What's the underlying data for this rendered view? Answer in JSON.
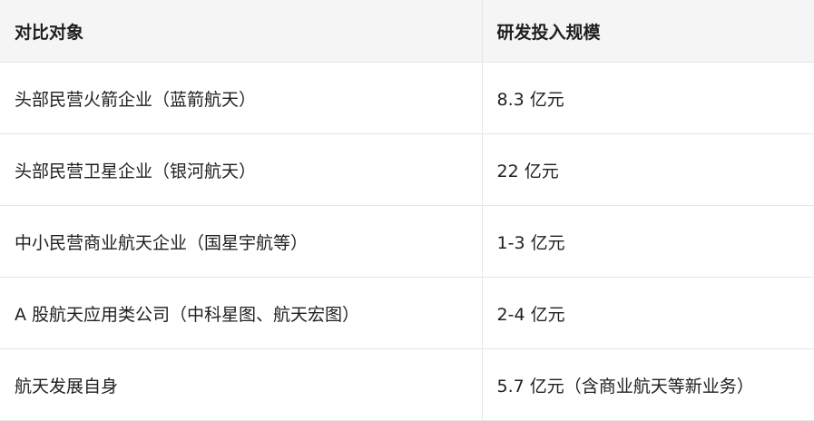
{
  "table": {
    "header": [
      "对比对象",
      "研发投入规模"
    ],
    "rows": [
      [
        "头部民营火箭企业（蓝箭航天）",
        "8.3 亿元"
      ],
      [
        "头部民营卫星企业（银河航天）",
        "22 亿元"
      ],
      [
        "中小民营商业航天企业（国星宇航等）",
        "1-3 亿元"
      ],
      [
        "A 股航天应用类公司（中科星图、航天宏图）",
        "2-4 亿元"
      ],
      [
        "航天发展自身",
        "5.7 亿元（含商业航天等新业务）"
      ]
    ]
  }
}
